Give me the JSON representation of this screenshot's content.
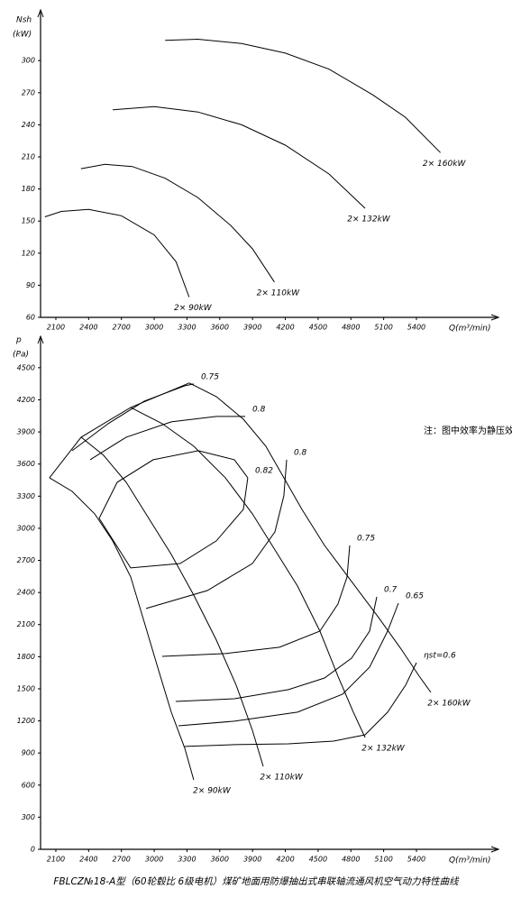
{
  "chart_data": [
    {
      "type": "line",
      "y_label": "Nsh",
      "y_unit": "(kW)",
      "x_label": "Q(m³/min)",
      "color": "#000000",
      "grid": false,
      "xlim": [
        1960,
        6085
      ],
      "ylim": [
        60,
        344
      ],
      "xticks": [
        2100,
        2400,
        2700,
        3000,
        3300,
        3600,
        3900,
        4200,
        4500,
        4800,
        5100,
        5400
      ],
      "yticks": [
        60,
        90,
        120,
        150,
        180,
        210,
        240,
        270,
        300
      ],
      "series": [
        {
          "name": "2× 90kW",
          "x": [
            2000,
            2150,
            2400,
            2700,
            3000,
            3200,
            3320
          ],
          "values": [
            154,
            159,
            161,
            155,
            137,
            112,
            79
          ]
        },
        {
          "name": "2× 110kW",
          "x": [
            2330,
            2550,
            2800,
            3100,
            3400,
            3700,
            3900,
            4100
          ],
          "values": [
            199,
            203,
            201,
            190,
            172,
            146,
            124,
            93
          ]
        },
        {
          "name": "2× 132kW",
          "x": [
            2620,
            3000,
            3400,
            3800,
            4200,
            4600,
            4930
          ],
          "values": [
            254,
            257,
            252,
            240,
            221,
            194,
            162
          ]
        },
        {
          "name": "2× 160kW",
          "x": [
            3100,
            3400,
            3800,
            4200,
            4600,
            5000,
            5300,
            5620
          ],
          "values": [
            319,
            320,
            316,
            307,
            292,
            268,
            247,
            214
          ]
        }
      ]
    },
    {
      "type": "line",
      "y_label": "p",
      "y_unit": "(Pa)",
      "x_label": "Q(m³/min)",
      "color": "#000000",
      "grid": false,
      "annotation": "注：图中效率为静压效率",
      "xlim": [
        1960,
        6085
      ],
      "ylim": [
        0,
        4760
      ],
      "xticks": [
        2100,
        2400,
        2700,
        3000,
        3300,
        3600,
        3900,
        4200,
        4500,
        4800,
        5100,
        5400
      ],
      "yticks": [
        0,
        300,
        600,
        900,
        1200,
        1500,
        1800,
        2100,
        2400,
        2700,
        3000,
        3300,
        3600,
        3900,
        4200,
        4500
      ],
      "series": [
        {
          "name": "2× 90kW",
          "x": [
            2042,
            2249,
            2455,
            2620,
            2785,
            2909,
            3032,
            3156,
            3280,
            3362
          ],
          "values": [
            3472,
            3345,
            3135,
            2882,
            2545,
            2124,
            1702,
            1281,
            944,
            649
          ]
        },
        {
          "name": "2× 110kW",
          "x": [
            2331,
            2537,
            2744,
            2950,
            3156,
            3362,
            3569,
            3750,
            3899,
            3998
          ],
          "values": [
            3851,
            3682,
            3430,
            3093,
            2756,
            2376,
            1955,
            1534,
            1112,
            775
          ]
        },
        {
          "name": "2× 132kW",
          "x": [
            2785,
            3074,
            3362,
            3651,
            3899,
            4105,
            4311,
            4517,
            4682,
            4823,
            4930
          ],
          "values": [
            4129,
            3977,
            3767,
            3472,
            3135,
            2798,
            2461,
            2039,
            1618,
            1281,
            1045
          ]
        },
        {
          "name": "2× 160kW",
          "x": [
            3321,
            3569,
            3816,
            4022,
            4187,
            4352,
            4559,
            4806,
            5054,
            5260,
            5425,
            5532
          ],
          "values": [
            4357,
            4230,
            4019,
            3767,
            3472,
            3177,
            2840,
            2503,
            2166,
            1871,
            1618,
            1466
          ]
        },
        {
          "x": [
            2042,
            2331,
            2785,
            3321
          ],
          "values": [
            3472,
            3851,
            4129,
            4357
          ]
        },
        {
          "name": "0.75",
          "x": [
            2249,
            2579,
            2909,
            3280,
            3362
          ],
          "values": [
            3725,
            3977,
            4188,
            4331,
            4348
          ]
        },
        {
          "name": "0.8",
          "x": [
            2414,
            2744,
            3156,
            3569,
            3833
          ],
          "values": [
            3640,
            3851,
            3994,
            4045,
            4045
          ]
        },
        {
          "name": "0.82",
          "x": [
            3857,
            3816,
            3569,
            3238,
            2785,
            2496,
            2661,
            2991,
            3404,
            3734,
            3857
          ],
          "values": [
            3472,
            3177,
            2882,
            2671,
            2629,
            3093,
            3430,
            3640,
            3725,
            3640,
            3472
          ]
        },
        {
          "name": "0.8",
          "x": [
            2925,
            3486,
            3899,
            4105,
            4187,
            4212
          ],
          "values": [
            2250,
            2418,
            2671,
            2966,
            3303,
            3640
          ]
        },
        {
          "name": "0.75",
          "x": [
            3074,
            3651,
            4146,
            4517,
            4682,
            4765,
            4790
          ],
          "values": [
            1803,
            1829,
            1888,
            2039,
            2292,
            2545,
            2840
          ]
        },
        {
          "name": "0.7",
          "x": [
            3197,
            3734,
            4228,
            4559,
            4806,
            4971,
            5037
          ],
          "values": [
            1382,
            1407,
            1492,
            1601,
            1786,
            2039,
            2359
          ]
        },
        {
          "name": "0.65",
          "x": [
            3222,
            3734,
            4311,
            4724,
            4971,
            5136,
            5235
          ],
          "values": [
            1154,
            1197,
            1281,
            1449,
            1702,
            2039,
            2300
          ]
        },
        {
          "name": "ηst=0.6",
          "x": [
            3280,
            3734,
            4228,
            4641,
            4930,
            5136,
            5301,
            5400
          ],
          "values": [
            961,
            978,
            986,
            1011,
            1070,
            1281,
            1534,
            1744
          ]
        }
      ]
    }
  ],
  "caption": "FBLCZ№18-A型（60轮毂比 6级电机）煤矿地面用防爆抽出式串联轴流通风机空气动力特性曲线"
}
